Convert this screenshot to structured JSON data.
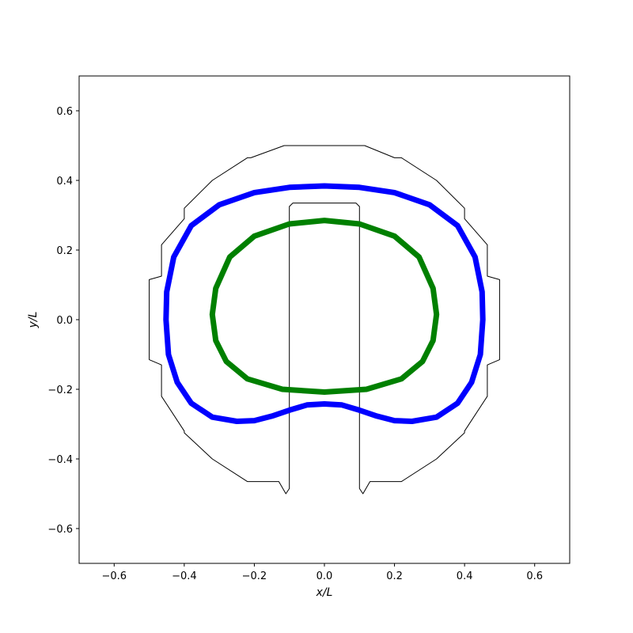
{
  "chart_data": {
    "type": "line",
    "title": "",
    "xlabel": "x/L",
    "ylabel": "y/L",
    "xlim": [
      -0.7,
      0.7
    ],
    "ylim": [
      -0.7,
      0.7
    ],
    "aspect": "equal",
    "grid": false,
    "legend": "none",
    "x_ticks": [
      -0.6,
      -0.4,
      -0.2,
      0.0,
      0.2,
      0.4,
      0.6
    ],
    "y_ticks": [
      -0.6,
      -0.4,
      -0.2,
      0.0,
      0.2,
      0.4,
      0.6
    ],
    "x_tick_labels": [
      "−0.6",
      "−0.4",
      "−0.2",
      "0.0",
      "0.2",
      "0.4",
      "0.6"
    ],
    "y_tick_labels": [
      "−0.6",
      "−0.4",
      "−0.2",
      "0.0",
      "0.2",
      "0.4",
      "0.6"
    ],
    "series": [
      {
        "color": "#000000",
        "kind": "outline",
        "points": [
          [
            -0.11,
            -0.5
          ],
          [
            -0.1,
            -0.485
          ],
          [
            -0.1,
            0.325
          ],
          [
            -0.09,
            0.335
          ],
          [
            0.09,
            0.335
          ],
          [
            0.1,
            0.325
          ],
          [
            0.1,
            -0.485
          ],
          [
            0.11,
            -0.5
          ],
          [
            0.13,
            -0.465
          ],
          [
            0.22,
            -0.465
          ],
          [
            0.32,
            -0.4
          ],
          [
            0.4,
            -0.325
          ],
          [
            0.4,
            -0.32
          ],
          [
            0.465,
            -0.22
          ],
          [
            0.465,
            -0.13
          ],
          [
            0.5,
            -0.115
          ],
          [
            0.5,
            0.115
          ],
          [
            0.465,
            0.125
          ],
          [
            0.465,
            0.215
          ],
          [
            0.4,
            0.29
          ],
          [
            0.4,
            0.32
          ],
          [
            0.32,
            0.4
          ],
          [
            0.22,
            0.465
          ],
          [
            0.2,
            0.465
          ],
          [
            0.115,
            0.5
          ],
          [
            -0.115,
            0.5
          ],
          [
            -0.21,
            0.465
          ],
          [
            -0.22,
            0.465
          ],
          [
            -0.32,
            0.4
          ],
          [
            -0.4,
            0.32
          ],
          [
            -0.4,
            0.29
          ],
          [
            -0.465,
            0.215
          ],
          [
            -0.465,
            0.125
          ],
          [
            -0.5,
            0.115
          ],
          [
            -0.5,
            -0.115
          ],
          [
            -0.465,
            -0.13
          ],
          [
            -0.465,
            -0.22
          ],
          [
            -0.4,
            -0.32
          ],
          [
            -0.4,
            -0.325
          ],
          [
            -0.32,
            -0.4
          ],
          [
            -0.22,
            -0.465
          ],
          [
            -0.13,
            -0.465
          ],
          [
            -0.11,
            -0.5
          ]
        ]
      },
      {
        "color": "#0000ff",
        "kind": "curve",
        "points": [
          [
            0.0,
            0.384
          ],
          [
            0.1,
            0.38
          ],
          [
            0.2,
            0.365
          ],
          [
            0.3,
            0.33
          ],
          [
            0.38,
            0.27
          ],
          [
            0.43,
            0.18
          ],
          [
            0.45,
            0.08
          ],
          [
            0.452,
            0.0
          ],
          [
            0.445,
            -0.1
          ],
          [
            0.42,
            -0.18
          ],
          [
            0.38,
            -0.24
          ],
          [
            0.32,
            -0.28
          ],
          [
            0.25,
            -0.292
          ],
          [
            0.2,
            -0.29
          ],
          [
            0.15,
            -0.277
          ],
          [
            0.1,
            -0.26
          ],
          [
            0.05,
            -0.245
          ],
          [
            0.0,
            -0.242
          ],
          [
            -0.05,
            -0.245
          ],
          [
            -0.1,
            -0.26
          ],
          [
            -0.15,
            -0.277
          ],
          [
            -0.2,
            -0.29
          ],
          [
            -0.25,
            -0.292
          ],
          [
            -0.32,
            -0.28
          ],
          [
            -0.38,
            -0.24
          ],
          [
            -0.42,
            -0.18
          ],
          [
            -0.445,
            -0.1
          ],
          [
            -0.452,
            0.0
          ],
          [
            -0.45,
            0.08
          ],
          [
            -0.43,
            0.18
          ],
          [
            -0.38,
            0.27
          ],
          [
            -0.3,
            0.33
          ],
          [
            -0.2,
            0.365
          ],
          [
            -0.1,
            0.38
          ],
          [
            0.0,
            0.384
          ]
        ]
      },
      {
        "color": "#008000",
        "kind": "curve",
        "points": [
          [
            0.0,
            0.285
          ],
          [
            0.1,
            0.275
          ],
          [
            0.2,
            0.24
          ],
          [
            0.27,
            0.18
          ],
          [
            0.31,
            0.09
          ],
          [
            0.32,
            0.015
          ],
          [
            0.31,
            -0.06
          ],
          [
            0.28,
            -0.12
          ],
          [
            0.22,
            -0.17
          ],
          [
            0.12,
            -0.2
          ],
          [
            0.0,
            -0.208
          ],
          [
            -0.12,
            -0.2
          ],
          [
            -0.22,
            -0.17
          ],
          [
            -0.28,
            -0.12
          ],
          [
            -0.31,
            -0.06
          ],
          [
            -0.32,
            0.015
          ],
          [
            -0.31,
            0.09
          ],
          [
            -0.27,
            0.18
          ],
          [
            -0.2,
            0.24
          ],
          [
            -0.1,
            0.275
          ],
          [
            0.0,
            0.285
          ]
        ]
      }
    ]
  }
}
